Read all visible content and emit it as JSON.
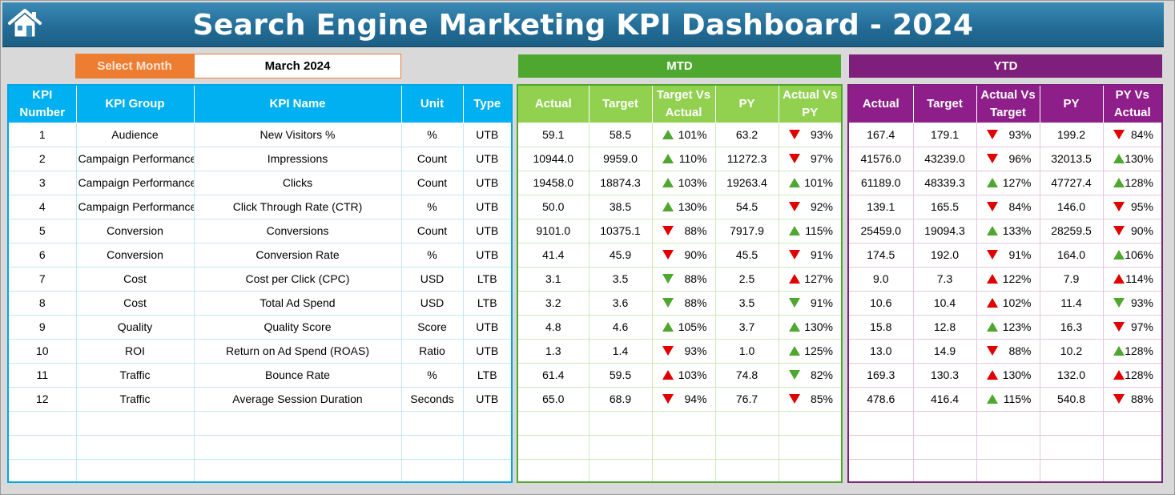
{
  "title": "Search Engine Marketing KPI Dashboard - 2024",
  "home_icon": "home-icon",
  "month_selector": {
    "label": "Select Month",
    "value": "March 2024"
  },
  "sections": {
    "mtd": "MTD",
    "ytd": "YTD"
  },
  "colors": {
    "header": "#236d97",
    "kpi": "#00b0f0",
    "mtd": "#92d050",
    "ytd": "#8e1f8a",
    "select": "#ed7d31",
    "up_green": "#4ea72e",
    "down_red": "#e00000"
  },
  "headers": {
    "kpi": [
      "KPI Number",
      "KPI Group",
      "KPI Name",
      "Unit",
      "Type"
    ],
    "mtd": [
      "Actual",
      "Target",
      "Target Vs Actual",
      "PY",
      "Actual Vs PY"
    ],
    "ytd": [
      "Actual",
      "Target",
      "Actual Vs Target",
      "PY",
      "PY Vs Actual"
    ]
  },
  "rows": [
    {
      "num": "1",
      "group": "Audience",
      "name": "New Visitors %",
      "unit": "%",
      "type": "UTB",
      "mtd": {
        "actual": "59.1",
        "target": "58.5",
        "tva": "101%",
        "tva_dir": "up",
        "tva_color": "green",
        "py": "63.2",
        "avp": "93%",
        "avp_dir": "down",
        "avp_color": "red"
      },
      "ytd": {
        "actual": "167.4",
        "target": "179.1",
        "avt": "93%",
        "avt_dir": "down",
        "avt_color": "red",
        "py": "199.2",
        "pva": "84%",
        "pva_dir": "down",
        "pva_color": "red"
      }
    },
    {
      "num": "2",
      "group": "Campaign Performance",
      "name": "Impressions",
      "unit": "Count",
      "type": "UTB",
      "mtd": {
        "actual": "10944.0",
        "target": "9959.0",
        "tva": "110%",
        "tva_dir": "up",
        "tva_color": "green",
        "py": "11272.3",
        "avp": "97%",
        "avp_dir": "down",
        "avp_color": "red"
      },
      "ytd": {
        "actual": "41576.0",
        "target": "43239.0",
        "avt": "96%",
        "avt_dir": "down",
        "avt_color": "red",
        "py": "32013.5",
        "pva": "130%",
        "pva_dir": "up",
        "pva_color": "green"
      }
    },
    {
      "num": "3",
      "group": "Campaign Performance",
      "name": "Clicks",
      "unit": "Count",
      "type": "UTB",
      "mtd": {
        "actual": "19458.0",
        "target": "18874.3",
        "tva": "103%",
        "tva_dir": "up",
        "tva_color": "green",
        "py": "19263.4",
        "avp": "101%",
        "avp_dir": "up",
        "avp_color": "green"
      },
      "ytd": {
        "actual": "61189.0",
        "target": "48339.3",
        "avt": "127%",
        "avt_dir": "up",
        "avt_color": "green",
        "py": "47727.4",
        "pva": "128%",
        "pva_dir": "up",
        "pva_color": "green"
      }
    },
    {
      "num": "4",
      "group": "Campaign Performance",
      "name": "Click Through Rate (CTR)",
      "unit": "%",
      "type": "UTB",
      "mtd": {
        "actual": "50.0",
        "target": "38.5",
        "tva": "130%",
        "tva_dir": "up",
        "tva_color": "green",
        "py": "54.5",
        "avp": "92%",
        "avp_dir": "down",
        "avp_color": "red"
      },
      "ytd": {
        "actual": "139.1",
        "target": "165.5",
        "avt": "84%",
        "avt_dir": "down",
        "avt_color": "red",
        "py": "146.0",
        "pva": "95%",
        "pva_dir": "down",
        "pva_color": "red"
      }
    },
    {
      "num": "5",
      "group": "Conversion",
      "name": "Conversions",
      "unit": "Count",
      "type": "UTB",
      "mtd": {
        "actual": "9101.0",
        "target": "10375.1",
        "tva": "88%",
        "tva_dir": "down",
        "tva_color": "red",
        "py": "7917.9",
        "avp": "115%",
        "avp_dir": "up",
        "avp_color": "green"
      },
      "ytd": {
        "actual": "25459.0",
        "target": "19094.3",
        "avt": "133%",
        "avt_dir": "up",
        "avt_color": "green",
        "py": "28259.5",
        "pva": "90%",
        "pva_dir": "down",
        "pva_color": "red"
      }
    },
    {
      "num": "6",
      "group": "Conversion",
      "name": "Conversion Rate",
      "unit": "%",
      "type": "UTB",
      "mtd": {
        "actual": "41.4",
        "target": "45.9",
        "tva": "90%",
        "tva_dir": "down",
        "tva_color": "red",
        "py": "45.5",
        "avp": "91%",
        "avp_dir": "down",
        "avp_color": "red"
      },
      "ytd": {
        "actual": "174.5",
        "target": "192.0",
        "avt": "91%",
        "avt_dir": "down",
        "avt_color": "red",
        "py": "164.0",
        "pva": "106%",
        "pva_dir": "up",
        "pva_color": "green"
      }
    },
    {
      "num": "7",
      "group": "Cost",
      "name": "Cost per Click (CPC)",
      "unit": "USD",
      "type": "LTB",
      "mtd": {
        "actual": "3.1",
        "target": "3.5",
        "tva": "88%",
        "tva_dir": "down",
        "tva_color": "green",
        "py": "2.5",
        "avp": "127%",
        "avp_dir": "up",
        "avp_color": "red"
      },
      "ytd": {
        "actual": "9.0",
        "target": "7.3",
        "avt": "122%",
        "avt_dir": "up",
        "avt_color": "red",
        "py": "7.9",
        "pva": "114%",
        "pva_dir": "up",
        "pva_color": "red"
      }
    },
    {
      "num": "8",
      "group": "Cost",
      "name": "Total Ad Spend",
      "unit": "USD",
      "type": "LTB",
      "mtd": {
        "actual": "3.2",
        "target": "3.6",
        "tva": "88%",
        "tva_dir": "down",
        "tva_color": "green",
        "py": "3.5",
        "avp": "91%",
        "avp_dir": "down",
        "avp_color": "green"
      },
      "ytd": {
        "actual": "10.6",
        "target": "10.4",
        "avt": "102%",
        "avt_dir": "up",
        "avt_color": "red",
        "py": "11.4",
        "pva": "93%",
        "pva_dir": "down",
        "pva_color": "green"
      }
    },
    {
      "num": "9",
      "group": "Quality",
      "name": "Quality Score",
      "unit": "Score",
      "type": "UTB",
      "mtd": {
        "actual": "4.8",
        "target": "4.6",
        "tva": "105%",
        "tva_dir": "up",
        "tva_color": "green",
        "py": "3.7",
        "avp": "130%",
        "avp_dir": "up",
        "avp_color": "green"
      },
      "ytd": {
        "actual": "15.8",
        "target": "12.8",
        "avt": "123%",
        "avt_dir": "up",
        "avt_color": "green",
        "py": "16.3",
        "pva": "97%",
        "pva_dir": "down",
        "pva_color": "red"
      }
    },
    {
      "num": "10",
      "group": "ROI",
      "name": "Return on Ad Spend (ROAS)",
      "unit": "Ratio",
      "type": "UTB",
      "mtd": {
        "actual": "1.3",
        "target": "1.4",
        "tva": "93%",
        "tva_dir": "down",
        "tva_color": "red",
        "py": "1.0",
        "avp": "125%",
        "avp_dir": "up",
        "avp_color": "green"
      },
      "ytd": {
        "actual": "13.0",
        "target": "14.9",
        "avt": "88%",
        "avt_dir": "down",
        "avt_color": "red",
        "py": "10.2",
        "pva": "128%",
        "pva_dir": "up",
        "pva_color": "green"
      }
    },
    {
      "num": "11",
      "group": "Traffic",
      "name": "Bounce Rate",
      "unit": "%",
      "type": "LTB",
      "mtd": {
        "actual": "61.4",
        "target": "59.5",
        "tva": "103%",
        "tva_dir": "up",
        "tva_color": "red",
        "py": "74.8",
        "avp": "82%",
        "avp_dir": "down",
        "avp_color": "green"
      },
      "ytd": {
        "actual": "169.3",
        "target": "130.3",
        "avt": "130%",
        "avt_dir": "up",
        "avt_color": "red",
        "py": "132.0",
        "pva": "128%",
        "pva_dir": "up",
        "pva_color": "red"
      }
    },
    {
      "num": "12",
      "group": "Traffic",
      "name": "Average Session Duration",
      "unit": "Seconds",
      "type": "UTB",
      "mtd": {
        "actual": "65.0",
        "target": "68.9",
        "tva": "94%",
        "tva_dir": "down",
        "tva_color": "red",
        "py": "76.7",
        "avp": "85%",
        "avp_dir": "down",
        "avp_color": "red"
      },
      "ytd": {
        "actual": "478.6",
        "target": "416.4",
        "avt": "115%",
        "avt_dir": "up",
        "avt_color": "green",
        "py": "540.8",
        "pva": "88%",
        "pva_dir": "down",
        "pva_color": "red"
      }
    }
  ]
}
